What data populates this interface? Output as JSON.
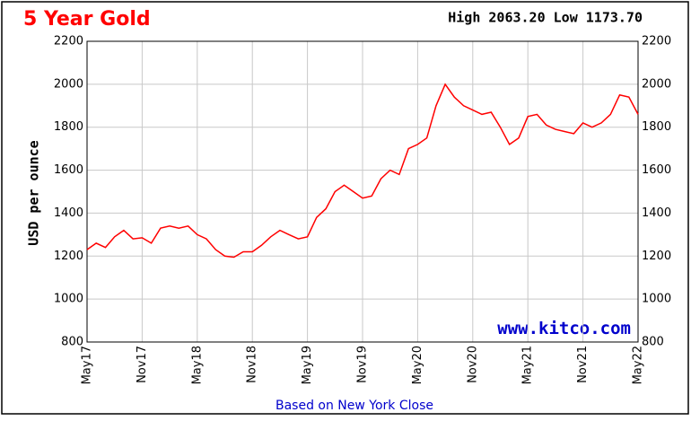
{
  "chart_data": {
    "type": "line",
    "title": "5 Year Gold",
    "subtitle": "High 2063.20 Low 1173.70",
    "y_label": "USD per ounce",
    "footnote": "Based on New York Close",
    "watermark": "www.kitco.com",
    "categories": [
      "May17",
      null,
      null,
      null,
      null,
      null,
      "Nov17",
      null,
      null,
      null,
      null,
      null,
      "May18",
      null,
      null,
      null,
      null,
      null,
      "Nov18",
      null,
      null,
      null,
      null,
      null,
      "May19",
      null,
      null,
      null,
      null,
      null,
      "Nov19",
      null,
      null,
      null,
      null,
      null,
      "May20",
      null,
      null,
      null,
      null,
      null,
      "Nov20",
      null,
      null,
      null,
      null,
      null,
      "May21",
      null,
      null,
      null,
      null,
      null,
      "Nov21",
      null,
      null,
      null,
      null,
      null,
      "May22"
    ],
    "series": [
      {
        "name": "Gold",
        "color": "#ff0000",
        "values": [
          1230,
          1260,
          1240,
          1290,
          1320,
          1280,
          1285,
          1260,
          1330,
          1340,
          1330,
          1340,
          1300,
          1280,
          1230,
          1200,
          1195,
          1220,
          1220,
          1250,
          1290,
          1320,
          1300,
          1280,
          1290,
          1380,
          1420,
          1500,
          1530,
          1500,
          1470,
          1480,
          1560,
          1600,
          1580,
          1700,
          1720,
          1750,
          1900,
          2000,
          1940,
          1900,
          1880,
          1860,
          1870,
          1800,
          1720,
          1750,
          1850,
          1860,
          1810,
          1790,
          1780,
          1770,
          1820,
          1800,
          1820,
          1860,
          1950,
          1940,
          1860
        ]
      }
    ],
    "ylim": [
      800,
      2200
    ],
    "yticks": [
      800,
      1000,
      1200,
      1400,
      1600,
      1800,
      2000,
      2200
    ],
    "grid": true
  }
}
